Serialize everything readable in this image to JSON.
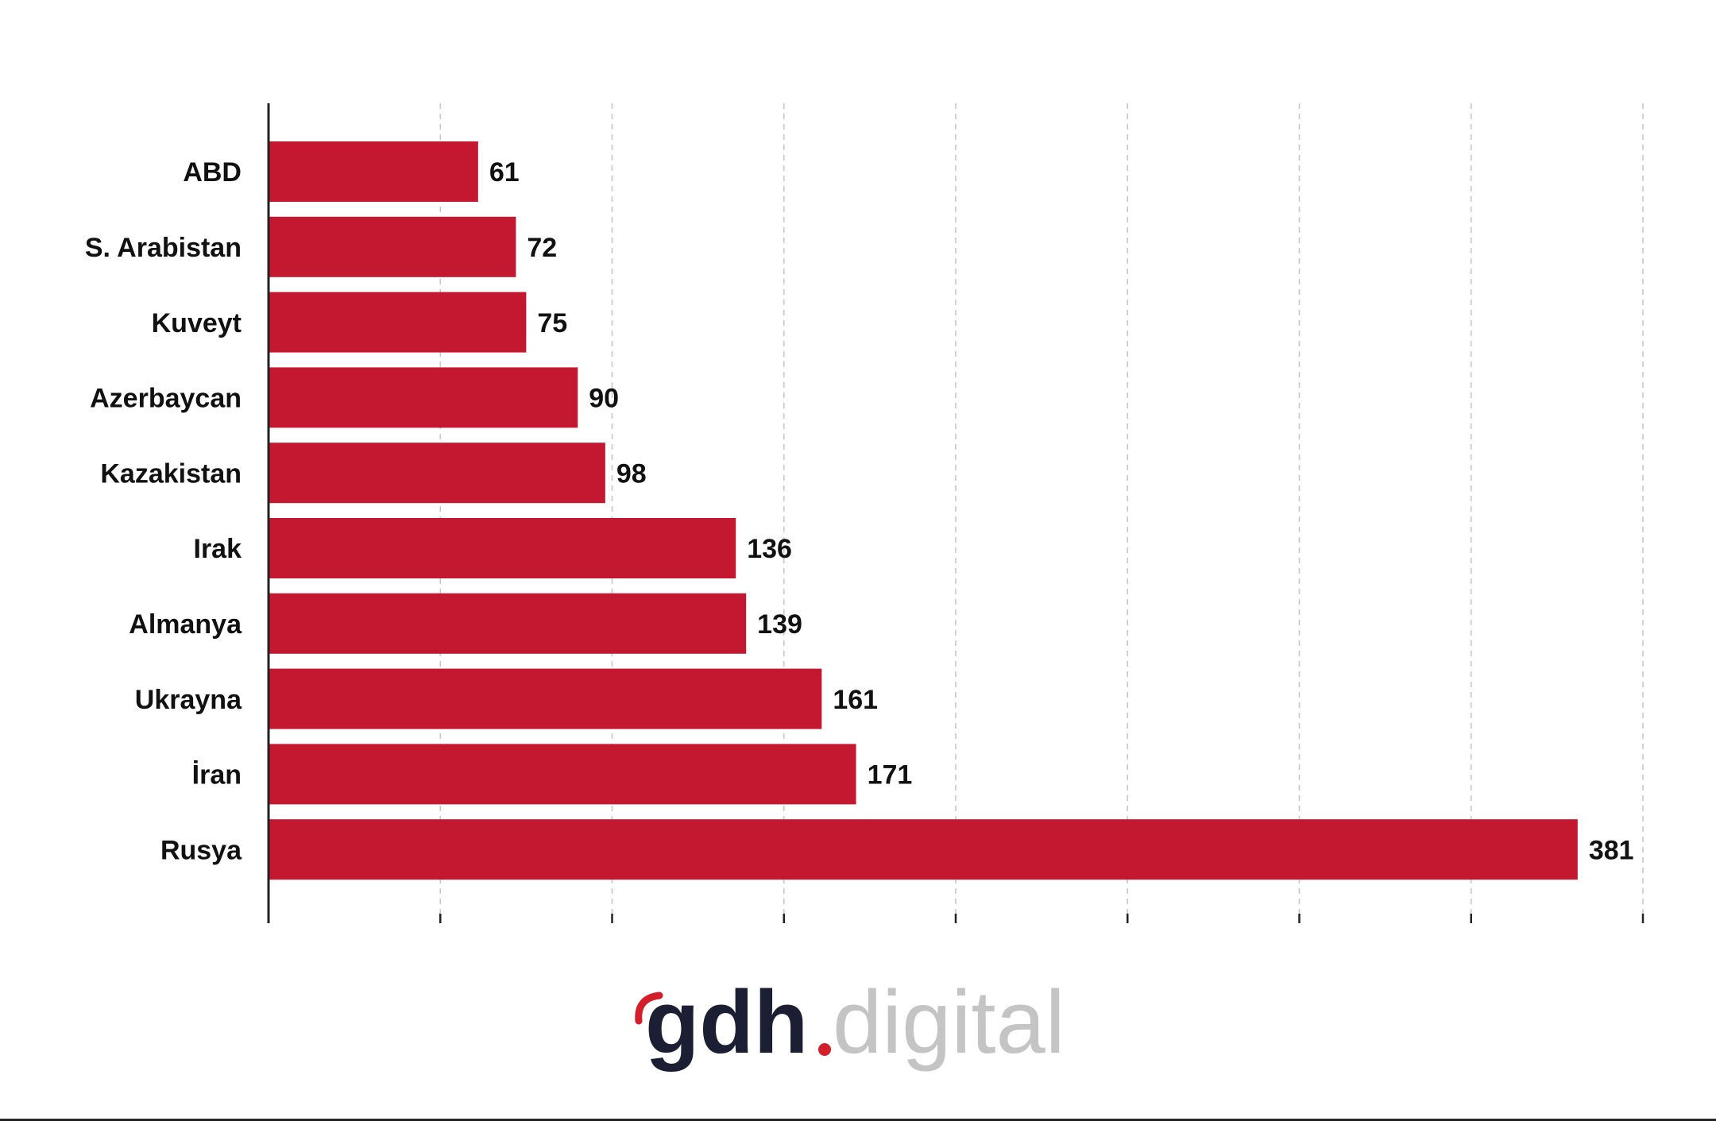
{
  "colors": {
    "bar": "#c41730",
    "text": "#111111",
    "grid": "#c8c8c8",
    "axis": "#222222",
    "logo_dark": "#1c1f33",
    "logo_accent": "#d21f2b",
    "logo_light": "#c4c4c4"
  },
  "logo": {
    "brand": "gdh",
    "suffix": "digital"
  },
  "chart_data": {
    "type": "bar",
    "orientation": "horizontal",
    "categories": [
      "ABD",
      "S. Arabistan",
      "Kuveyt",
      "Azerbaycan",
      "Kazakistan",
      "Irak",
      "Almanya",
      "Ukrayna",
      "İran",
      "Rusya"
    ],
    "values": [
      61,
      72,
      75,
      90,
      98,
      136,
      139,
      161,
      171,
      381
    ],
    "data_labels": [
      "61",
      "72",
      "75",
      "90",
      "98",
      "136",
      "139",
      "161",
      "171",
      "381"
    ],
    "xlim": [
      0,
      400
    ],
    "tick_values": [
      0,
      50,
      100,
      150,
      200,
      250,
      300,
      350,
      400
    ],
    "grid": true,
    "grid_style": "dashed-vertical",
    "legend": "none",
    "title": "",
    "xlabel": "",
    "ylabel": ""
  }
}
